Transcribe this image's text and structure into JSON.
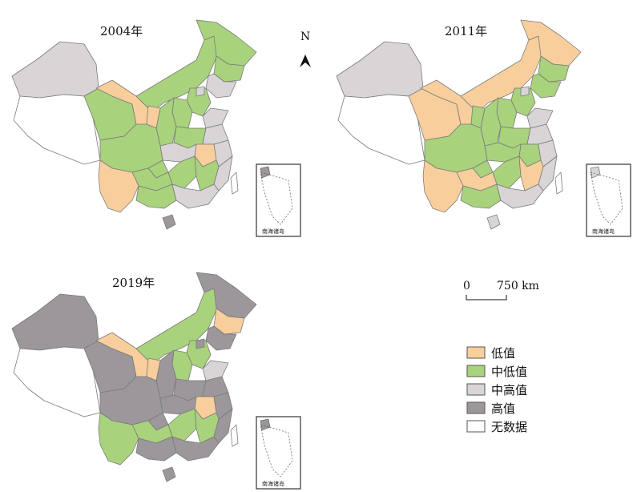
{
  "maps": [
    {
      "year_label": "2004年"
    },
    {
      "year_label": "2011年"
    },
    {
      "year_label": "2019年"
    }
  ],
  "inset_label": "南海诸岛",
  "north_arrow_label": "N",
  "scale_bar": {
    "zero": "0",
    "distance": "750 km"
  },
  "legend": [
    {
      "label": "低值",
      "color": "#f8cf9c"
    },
    {
      "label": "中低值",
      "color": "#a9d27c"
    },
    {
      "label": "中高值",
      "color": "#d9d5d7"
    },
    {
      "label": "高值",
      "color": "#9c979a"
    },
    {
      "label": "无数据",
      "color": "#ffffff"
    }
  ]
}
